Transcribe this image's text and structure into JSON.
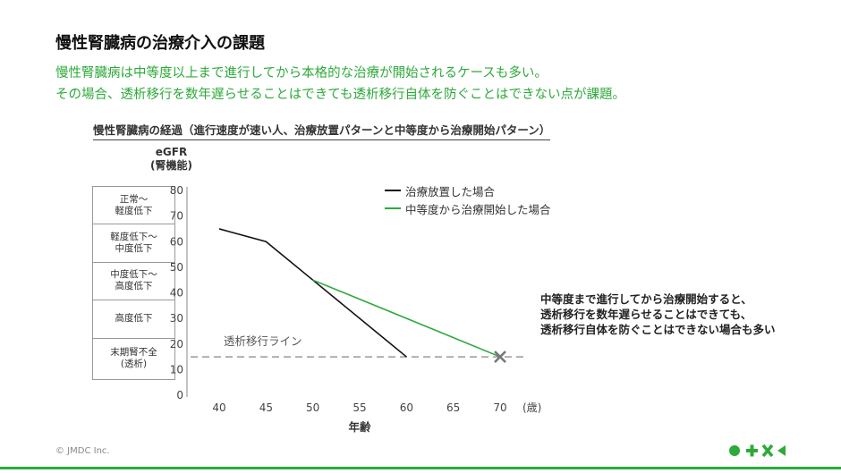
{
  "page": {
    "title": "慢性腎臓病の治療介入の課題",
    "lead_lines": [
      "慢性腎臓病は中等度以上まで進行してから本格的な治療が開始されるケースも多い。",
      "その場合、透析移行を数年遅らせることはできても透析移行自体を防ぐことはできない点が課題。"
    ],
    "copyright": "© JMDC Inc.",
    "colors": {
      "accent": "#2daa3a",
      "black_line": "#111111",
      "dashed": "#999999",
      "cross": "#777777"
    }
  },
  "stages": [
    "正常〜\n軽度低下",
    "軽度低下〜\n中度低下",
    "中度低下〜\n高度低下",
    "高度低下",
    "末期腎不全\n(透析)"
  ],
  "annotation": "中等度まで進行してから治療開始すると、\n透析移行を数年遅らせることはできても、\n透析移行自体を防ぐことはできない場合も多い",
  "chart_data": {
    "type": "line",
    "title": "慢性腎臓病の経過（進行速度が速い人、治療放置パターンと中等度から治療開始パターン）",
    "ylabel_line1": "eGFR",
    "ylabel_line2": "(腎機能)",
    "xlabel": "年齢",
    "x_unit": "(歳)",
    "xlim": [
      40,
      70
    ],
    "ylim": [
      0,
      80
    ],
    "x_ticks": [
      40,
      45,
      50,
      55,
      60,
      65,
      70
    ],
    "y_ticks": [
      0,
      10,
      20,
      30,
      40,
      50,
      60,
      70,
      80
    ],
    "series": [
      {
        "name": "治療放置した場合",
        "color": "#111111",
        "x": [
          40,
          45,
          50,
          60
        ],
        "y": [
          65,
          60,
          45,
          15
        ]
      },
      {
        "name": "中等度から治療開始した場合",
        "color": "#2daa3a",
        "x": [
          50,
          70
        ],
        "y": [
          45,
          15
        ]
      }
    ],
    "reference_line": {
      "label": "透析移行ライン",
      "y": 15,
      "style": "dashed"
    },
    "marker": {
      "type": "cross",
      "x": 70,
      "y": 15
    }
  }
}
